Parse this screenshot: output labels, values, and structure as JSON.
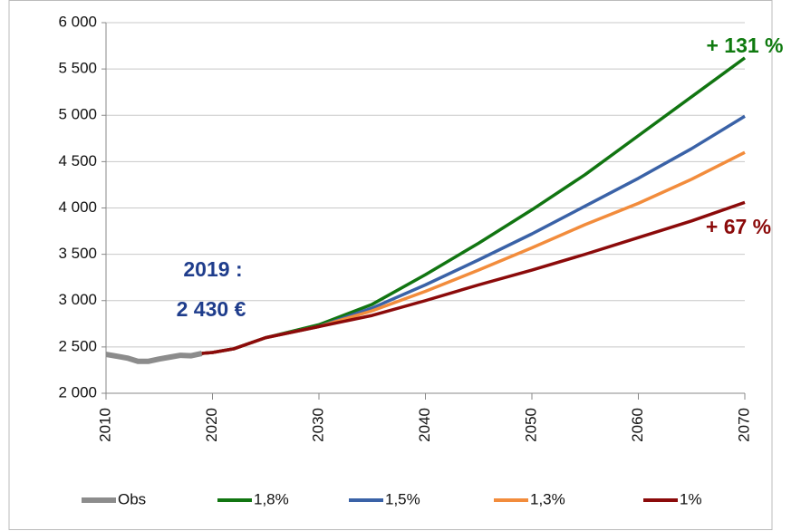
{
  "chart_data": {
    "type": "line",
    "x": [
      2010,
      2011,
      2012,
      2013,
      2014,
      2015,
      2016,
      2017,
      2018,
      2019,
      2020,
      2022,
      2025,
      2030,
      2035,
      2040,
      2045,
      2050,
      2055,
      2060,
      2065,
      2070
    ],
    "series": [
      {
        "name": "Obs",
        "color": "#8c8c8c",
        "values": [
          2420,
          2400,
          2380,
          2345,
          2345,
          2370,
          2390,
          2410,
          2405,
          2430,
          null,
          null,
          null,
          null,
          null,
          null,
          null,
          null,
          null,
          null,
          null,
          null
        ]
      },
      {
        "name": "1,8%",
        "color": "#117511",
        "values": [
          null,
          null,
          null,
          null,
          null,
          null,
          null,
          null,
          null,
          2430,
          2440,
          2480,
          2600,
          2740,
          2960,
          3280,
          3620,
          3980,
          4360,
          4780,
          5200,
          5620
        ]
      },
      {
        "name": "1,5%",
        "color": "#3a62a7",
        "values": [
          null,
          null,
          null,
          null,
          null,
          null,
          null,
          null,
          null,
          2430,
          2440,
          2480,
          2600,
          2720,
          2920,
          3170,
          3440,
          3720,
          4020,
          4320,
          4640,
          4990
        ]
      },
      {
        "name": "1,3%",
        "color": "#f28c3c",
        "values": [
          null,
          null,
          null,
          null,
          null,
          null,
          null,
          null,
          null,
          2430,
          2440,
          2480,
          2600,
          2720,
          2890,
          3100,
          3330,
          3570,
          3820,
          4050,
          4310,
          4600
        ]
      },
      {
        "name": "1%",
        "color": "#8b0a0a",
        "values": [
          null,
          null,
          null,
          null,
          null,
          null,
          null,
          null,
          null,
          2430,
          2440,
          2480,
          2600,
          2720,
          2840,
          3000,
          3170,
          3330,
          3500,
          3680,
          3860,
          4060
        ]
      }
    ],
    "xlim": [
      2010,
      2070
    ],
    "xticks": [
      2010,
      2020,
      2030,
      2040,
      2050,
      2060,
      2070
    ],
    "ylim": [
      2000,
      6000
    ],
    "yticks": [
      {
        "value": 2000,
        "label": "2 000"
      },
      {
        "value": 2500,
        "label": "2 500"
      },
      {
        "value": 3000,
        "label": "3 000"
      },
      {
        "value": 3500,
        "label": "3 500"
      },
      {
        "value": 4000,
        "label": "4 000"
      },
      {
        "value": 4500,
        "label": "4 500"
      },
      {
        "value": 5000,
        "label": "5 000"
      },
      {
        "value": 5500,
        "label": "5 500"
      },
      {
        "value": 6000,
        "label": "6 000"
      }
    ],
    "grid": true,
    "legend": "bottom",
    "annotations": [
      {
        "text": "2019 :",
        "color": "#1f3d8c"
      },
      {
        "text": "2 430 €",
        "color": "#1f3d8c"
      },
      {
        "text": "+ 131 %",
        "color": "#0f7a0f"
      },
      {
        "text": "+ 67 %",
        "color": "#8b0a0a"
      }
    ]
  }
}
